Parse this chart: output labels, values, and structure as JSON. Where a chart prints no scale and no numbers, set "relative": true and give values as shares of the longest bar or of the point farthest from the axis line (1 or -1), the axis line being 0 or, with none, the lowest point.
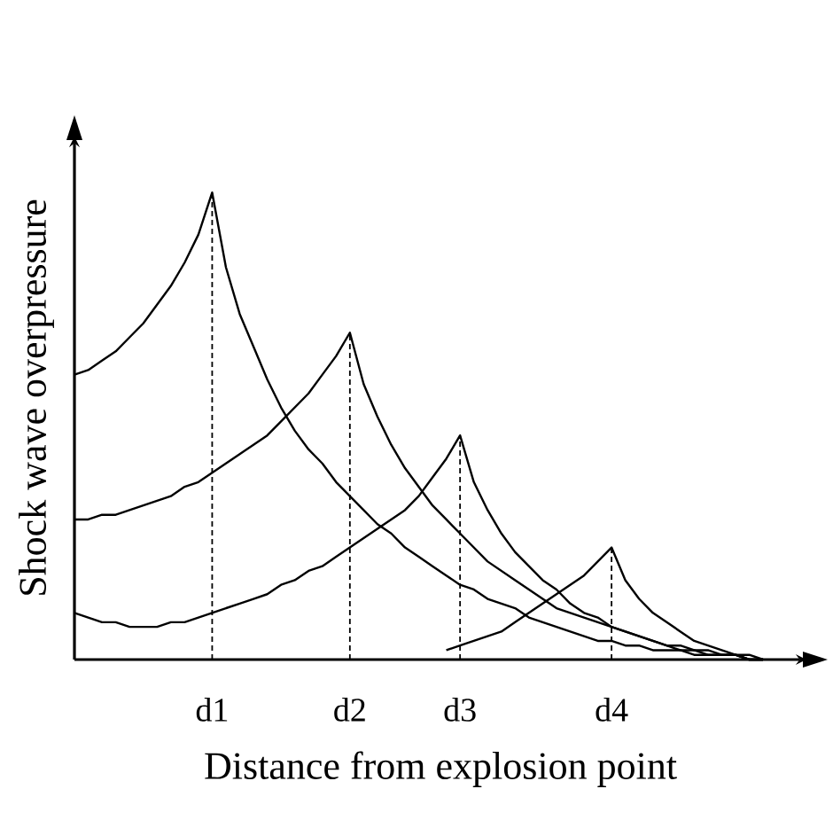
{
  "chart_data": {
    "type": "line",
    "relative": true,
    "xlabel": "Distance from explosion point",
    "ylabel": "Shock wave overpressure",
    "categories": [
      null,
      null,
      null,
      null,
      null,
      null,
      null,
      null,
      null,
      null,
      "d1",
      null,
      null,
      null,
      null,
      null,
      null,
      null,
      null,
      null,
      "d2",
      null,
      null,
      null,
      null,
      null,
      null,
      null,
      "d3",
      null,
      null,
      null,
      null,
      null,
      null,
      null,
      null,
      null,
      null,
      "d4",
      null,
      null,
      null,
      null,
      null,
      null,
      null,
      null,
      null,
      null,
      null
    ],
    "marker": "none",
    "line_style": "solid",
    "series": [
      {
        "color": "#000000",
        "values": [
          0.61,
          0.62,
          0.64,
          0.66,
          0.69,
          0.72,
          0.76,
          0.8,
          0.85,
          0.91,
          1,
          0.84,
          0.74,
          0.67,
          0.6,
          0.54,
          0.49,
          0.45,
          0.42,
          0.38,
          0.35,
          0.32,
          0.29,
          0.27,
          0.24,
          0.22,
          0.2,
          0.18,
          0.16,
          0.15,
          0.13,
          0.12,
          0.11,
          0.09,
          0.08,
          0.07,
          0.06,
          0.05,
          0.04,
          0.04,
          0.03,
          0.03,
          0.02,
          0.02,
          0.02,
          0.01,
          0.01,
          0.01,
          0.01,
          0,
          0
        ]
      },
      {
        "color": "#000000",
        "values": [
          0.3,
          0.3,
          0.31,
          0.31,
          0.32,
          0.33,
          0.34,
          0.35,
          0.37,
          0.38,
          0.4,
          0.42,
          0.44,
          0.46,
          0.48,
          0.51,
          0.54,
          0.57,
          0.61,
          0.65,
          0.7,
          0.59,
          0.52,
          0.46,
          0.41,
          0.37,
          0.33,
          0.3,
          0.27,
          0.24,
          0.21,
          0.19,
          0.17,
          0.15,
          0.13,
          0.11,
          0.1,
          0.09,
          0.08,
          0.07,
          0.06,
          0.05,
          0.04,
          0.03,
          0.03,
          0.02,
          0.02,
          0.01,
          0.01,
          0,
          0
        ]
      },
      {
        "color": "#000000",
        "values": [
          0.1,
          0.09,
          0.08,
          0.08,
          0.07,
          0.07,
          0.07,
          0.08,
          0.08,
          0.09,
          0.1,
          0.11,
          0.12,
          0.13,
          0.14,
          0.16,
          0.17,
          0.19,
          0.2,
          0.22,
          0.24,
          0.26,
          0.28,
          0.3,
          0.32,
          0.35,
          0.39,
          0.43,
          0.48,
          0.38,
          0.32,
          0.27,
          0.23,
          0.2,
          0.17,
          0.15,
          0.12,
          0.1,
          0.09,
          0.07,
          0.06,
          0.05,
          0.04,
          0.03,
          0.02,
          0.02,
          0.01,
          0.01,
          0.01,
          0,
          0
        ]
      },
      {
        "color": "#000000",
        "values": [
          null,
          null,
          null,
          null,
          null,
          null,
          null,
          null,
          null,
          null,
          null,
          null,
          null,
          null,
          null,
          null,
          null,
          null,
          null,
          null,
          null,
          null,
          null,
          null,
          null,
          null,
          null,
          0.02,
          0.03,
          0.04,
          0.05,
          0.06,
          0.08,
          0.1,
          0.12,
          0.14,
          0.16,
          0.18,
          0.21,
          0.24,
          0.17,
          0.13,
          0.1,
          0.08,
          0.06,
          0.04,
          0.03,
          0.02,
          0.01,
          0.01,
          0
        ]
      }
    ],
    "ref_lines": [
      {
        "axis": "x",
        "value": "d1",
        "line_style": "dashed"
      },
      {
        "axis": "x",
        "value": "d2",
        "line_style": "dashed"
      },
      {
        "axis": "x",
        "value": "d3",
        "line_style": "dashed"
      },
      {
        "axis": "x",
        "value": "d4",
        "line_style": "dashed"
      }
    ]
  }
}
